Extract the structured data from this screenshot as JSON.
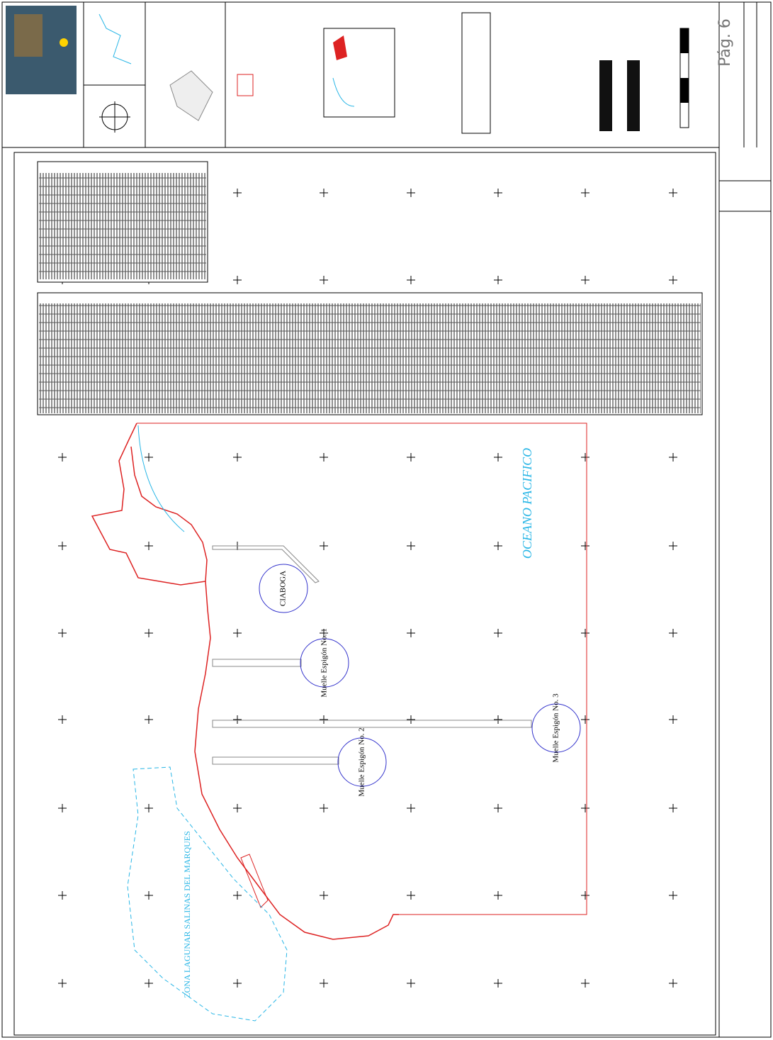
{
  "page_label": "Pág. 6",
  "map": {
    "ocean": "OCEANO PACIFICO",
    "turning_basin": "CIABOGA",
    "lagoon": "ZONA LAGUNAR SALINAS DEL MARQUES",
    "piers": [
      "Muelle Espigón No. 1",
      "Muelle Espigón No. 2",
      "Muelle Espigón No. 3"
    ]
  }
}
